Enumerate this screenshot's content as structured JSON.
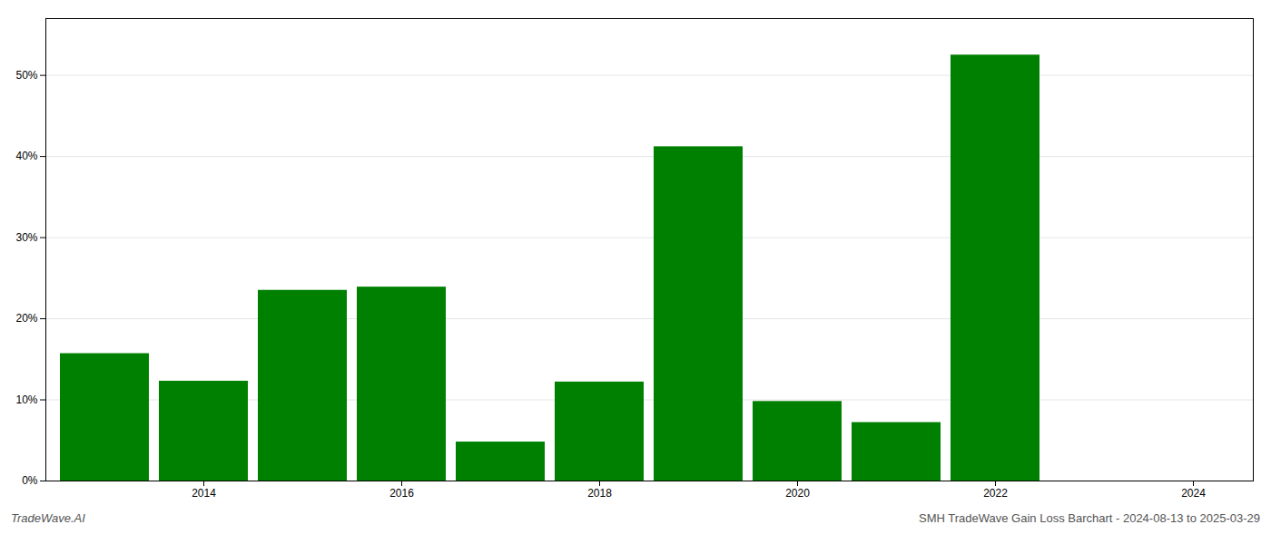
{
  "chart_data": {
    "type": "bar",
    "categories": [
      null,
      "2014",
      null,
      "2016",
      null,
      "2018",
      null,
      "2020",
      null,
      "2022",
      null,
      "2024"
    ],
    "values": [
      15.7,
      12.3,
      23.5,
      23.9,
      4.8,
      12.2,
      41.2,
      9.8,
      7.2,
      52.5,
      0.0,
      null
    ],
    "color": "#008000",
    "ylim": [
      0,
      57
    ],
    "yticks": [
      {
        "value": 0,
        "label": "0%"
      },
      {
        "value": 10,
        "label": "10%"
      },
      {
        "value": 20,
        "label": "20%"
      },
      {
        "value": 30,
        "label": "30%"
      },
      {
        "value": 40,
        "label": "40%"
      },
      {
        "value": 50,
        "label": "50%"
      }
    ],
    "grid": true,
    "footer_left": "TradeWave.AI",
    "footer_right": "SMH TradeWave Gain Loss Barchart - 2024-08-13 to 2025-03-29"
  }
}
